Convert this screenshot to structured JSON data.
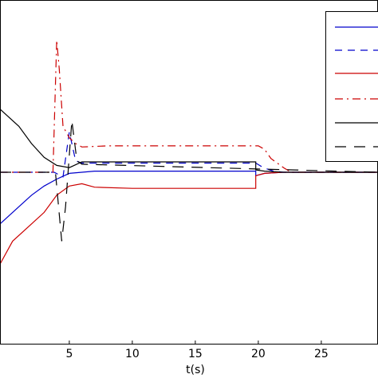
{
  "chart_data": {
    "type": "line",
    "xlabel": "t(s)",
    "xlim": [
      -0.5,
      29.5
    ],
    "ylim": [
      -1.5,
      1.5
    ],
    "xticks": [
      "5",
      "10",
      "15",
      "20",
      "25"
    ],
    "grid": false,
    "legend_position": "top-right",
    "series": [
      {
        "color": "#0000cc",
        "dash": "solid",
        "points": [
          [
            -0.5,
            -0.45
          ],
          [
            1.0,
            -0.3
          ],
          [
            2.0,
            -0.2
          ],
          [
            3.0,
            -0.12
          ],
          [
            4.0,
            -0.06
          ],
          [
            5.0,
            -0.01
          ],
          [
            6.0,
            0.0
          ],
          [
            7.0,
            0.01
          ],
          [
            10.0,
            0.01
          ],
          [
            15.0,
            0.01
          ],
          [
            19.8,
            0.01
          ],
          [
            19.8,
            -0.03
          ],
          [
            20.5,
            -0.01
          ],
          [
            22.0,
            0.0
          ],
          [
            29.5,
            0.0
          ]
        ]
      },
      {
        "color": "#0000cc",
        "dash": "dashed",
        "points": [
          [
            -0.5,
            0.0
          ],
          [
            3.8,
            0.0
          ],
          [
            4.5,
            -0.04
          ],
          [
            5.0,
            0.35
          ],
          [
            5.5,
            0.1
          ],
          [
            6.0,
            0.08
          ],
          [
            10.0,
            0.08
          ],
          [
            15.0,
            0.08
          ],
          [
            19.8,
            0.08
          ],
          [
            20.4,
            0.04
          ],
          [
            21.2,
            0.01
          ],
          [
            22.0,
            0.0
          ],
          [
            29.5,
            0.0
          ]
        ]
      },
      {
        "color": "#cc0000",
        "dash": "solid",
        "points": [
          [
            -0.5,
            -0.8
          ],
          [
            0.5,
            -0.6
          ],
          [
            2.0,
            -0.45
          ],
          [
            3.0,
            -0.35
          ],
          [
            4.0,
            -0.2
          ],
          [
            5.0,
            -0.12
          ],
          [
            6.0,
            -0.1
          ],
          [
            7.0,
            -0.13
          ],
          [
            10.0,
            -0.14
          ],
          [
            15.0,
            -0.14
          ],
          [
            19.8,
            -0.14
          ],
          [
            19.8,
            -0.03
          ],
          [
            20.5,
            -0.01
          ],
          [
            22.0,
            0.0
          ],
          [
            29.5,
            0.0
          ]
        ]
      },
      {
        "color": "#cc0000",
        "dash": "dashdot",
        "points": [
          [
            -0.5,
            0.0
          ],
          [
            3.7,
            0.0
          ],
          [
            4.0,
            1.15
          ],
          [
            4.2,
            0.9
          ],
          [
            4.5,
            0.4
          ],
          [
            5.0,
            0.3
          ],
          [
            5.5,
            0.25
          ],
          [
            6.0,
            0.22
          ],
          [
            8.0,
            0.23
          ],
          [
            10.0,
            0.23
          ],
          [
            15.0,
            0.23
          ],
          [
            20.0,
            0.23
          ],
          [
            20.5,
            0.2
          ],
          [
            21.0,
            0.12
          ],
          [
            22.0,
            0.04
          ],
          [
            22.6,
            0.0
          ],
          [
            29.5,
            0.0
          ]
        ]
      },
      {
        "color": "#000000",
        "dash": "solid",
        "points": [
          [
            -0.5,
            0.55
          ],
          [
            1.0,
            0.4
          ],
          [
            2.0,
            0.25
          ],
          [
            3.0,
            0.13
          ],
          [
            4.0,
            0.06
          ],
          [
            5.0,
            0.04
          ],
          [
            6.0,
            0.09
          ],
          [
            7.0,
            0.09
          ],
          [
            10.0,
            0.09
          ],
          [
            15.0,
            0.09
          ],
          [
            19.8,
            0.09
          ],
          [
            19.8,
            0.02
          ],
          [
            20.5,
            0.01
          ],
          [
            22.0,
            0.0
          ],
          [
            29.5,
            0.0
          ]
        ]
      },
      {
        "color": "#000000",
        "dash": "longdash",
        "points": [
          [
            -0.5,
            0.0
          ],
          [
            3.9,
            0.0
          ],
          [
            4.4,
            -0.6
          ],
          [
            4.7,
            -0.3
          ],
          [
            5.2,
            0.45
          ],
          [
            5.6,
            0.1
          ],
          [
            6.0,
            0.07
          ],
          [
            29.5,
            0.0
          ]
        ]
      }
    ]
  }
}
